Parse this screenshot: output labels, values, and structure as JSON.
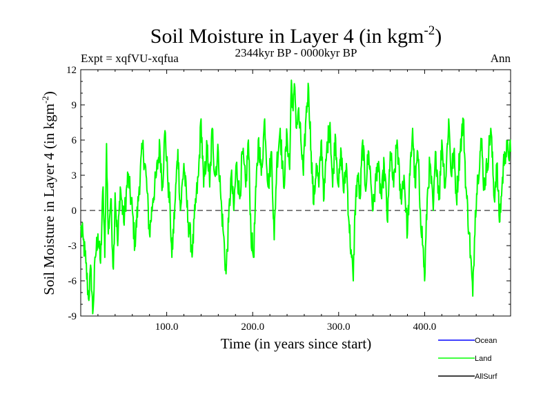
{
  "chart_data": {
    "type": "line",
    "title": "Soil Moisture in Layer 4 (in kgm",
    "title_sup": "-2",
    "title_close": ")",
    "subtitle": "2344kyr BP - 0000kyr BP",
    "expt_label": "Expt = xqfVU-xqfua",
    "season_label": "Ann",
    "xlabel": "Time (in years since start)",
    "ylabel": "Soil Moisture in Layer 4 (in kgm",
    "ylabel_sup": "-2",
    "ylabel_close": ")",
    "xlim": [
      0,
      500
    ],
    "ylim": [
      -9,
      12
    ],
    "xticks": [
      100,
      200,
      300,
      400
    ],
    "xtick_labels": [
      "100.0",
      "200.0",
      "300.0",
      "400.0"
    ],
    "yticks": [
      -9,
      -6,
      -3,
      0,
      3,
      6,
      9,
      12
    ],
    "ytick_labels": [
      "-9",
      "-6",
      "-3",
      "0",
      "3",
      "6",
      "9",
      "12"
    ],
    "zero_line": 0,
    "legend": [
      {
        "name": "Ocean",
        "color": "#0000ff"
      },
      {
        "name": "Land",
        "color": "#00ff00"
      },
      {
        "name": "AllSurf",
        "color": "#000000"
      }
    ],
    "series": [
      {
        "name": "Land",
        "color": "#00ff00",
        "keypoints": [
          [
            0,
            -1.5
          ],
          [
            3,
            -2.5
          ],
          [
            6,
            -4.5
          ],
          [
            9,
            -7.5
          ],
          [
            12,
            -5
          ],
          [
            14,
            -8.8
          ],
          [
            17,
            -4
          ],
          [
            20,
            -2
          ],
          [
            23,
            -4.5
          ],
          [
            26,
            2
          ],
          [
            28,
            -4
          ],
          [
            30,
            5.7
          ],
          [
            32,
            -2
          ],
          [
            35,
            1
          ],
          [
            38,
            -5
          ],
          [
            40,
            1.5
          ],
          [
            43,
            -3
          ],
          [
            46,
            2
          ],
          [
            50,
            -1
          ],
          [
            55,
            3
          ],
          [
            60,
            0
          ],
          [
            63,
            -3
          ],
          [
            68,
            2
          ],
          [
            72,
            5.5
          ],
          [
            76,
            3
          ],
          [
            80,
            -2
          ],
          [
            84,
            1
          ],
          [
            88,
            3
          ],
          [
            92,
            5.5
          ],
          [
            95,
            2
          ],
          [
            98,
            6.8
          ],
          [
            101,
            3
          ],
          [
            104,
            0
          ],
          [
            106,
            -4
          ],
          [
            110,
            1
          ],
          [
            113,
            5.2
          ],
          [
            116,
            0
          ],
          [
            120,
            4
          ],
          [
            125,
            -1
          ],
          [
            130,
            -3.5
          ],
          [
            133,
            0
          ],
          [
            137,
            3
          ],
          [
            140,
            7.8
          ],
          [
            143,
            2
          ],
          [
            147,
            5.5
          ],
          [
            150,
            2
          ],
          [
            153,
            7
          ],
          [
            156,
            3
          ],
          [
            160,
            5
          ],
          [
            163,
            1
          ],
          [
            166,
            -2
          ],
          [
            169,
            -5.4
          ],
          [
            172,
            -1
          ],
          [
            175,
            3
          ],
          [
            178,
            0
          ],
          [
            181,
            4
          ],
          [
            185,
            1
          ],
          [
            188,
            5
          ],
          [
            192,
            2
          ],
          [
            195,
            6
          ],
          [
            198,
            -2
          ],
          [
            201,
            -4
          ],
          [
            204,
            2
          ],
          [
            207,
            6.2
          ],
          [
            210,
            3
          ],
          [
            214,
            7.8
          ],
          [
            218,
            2
          ],
          [
            222,
            5
          ],
          [
            225,
            -2.5
          ],
          [
            228,
            4
          ],
          [
            232,
            7
          ],
          [
            236,
            2
          ],
          [
            240,
            6.5
          ],
          [
            243,
            3.5
          ],
          [
            245,
            11.1
          ],
          [
            247,
            8.5
          ],
          [
            249,
            10.5
          ],
          [
            251,
            7
          ],
          [
            253,
            8.5
          ],
          [
            256,
            6
          ],
          [
            259,
            3
          ],
          [
            262,
            8
          ],
          [
            265,
            10.5
          ],
          [
            268,
            5
          ],
          [
            271,
            0.5
          ],
          [
            274,
            4
          ],
          [
            277,
            2
          ],
          [
            280,
            6
          ],
          [
            283,
            1
          ],
          [
            286,
            5
          ],
          [
            290,
            7.5
          ],
          [
            293,
            2
          ],
          [
            296,
            6.5
          ],
          [
            300,
            2
          ],
          [
            303,
            5
          ],
          [
            306,
            1.5
          ],
          [
            309,
            4
          ],
          [
            312,
            -1
          ],
          [
            315,
            -4
          ],
          [
            317,
            -6
          ],
          [
            319,
            0
          ],
          [
            322,
            3
          ],
          [
            325,
            1
          ],
          [
            328,
            6
          ],
          [
            331,
            2
          ],
          [
            335,
            5
          ],
          [
            340,
            0
          ],
          [
            345,
            4
          ],
          [
            350,
            1
          ],
          [
            353,
            4
          ],
          [
            357,
            -1
          ],
          [
            360,
            5
          ],
          [
            364,
            2
          ],
          [
            368,
            6
          ],
          [
            372,
            1
          ],
          [
            376,
            3
          ],
          [
            380,
            -2
          ],
          [
            383,
            3
          ],
          [
            386,
            7
          ],
          [
            389,
            2
          ],
          [
            392,
            5
          ],
          [
            395,
            0
          ],
          [
            398,
            -3
          ],
          [
            400,
            -6
          ],
          [
            403,
            1
          ],
          [
            406,
            4
          ],
          [
            410,
            0
          ],
          [
            413,
            5
          ],
          [
            417,
            1
          ],
          [
            420,
            6
          ],
          [
            424,
            2
          ],
          [
            428,
            7.8
          ],
          [
            431,
            3
          ],
          [
            434,
            5
          ],
          [
            437,
            1
          ],
          [
            441,
            5
          ],
          [
            445,
            7.8
          ],
          [
            448,
            2
          ],
          [
            452,
            -2
          ],
          [
            456,
            -7.3
          ],
          [
            459,
            0
          ],
          [
            462,
            3
          ],
          [
            466,
            6
          ],
          [
            469,
            2
          ],
          [
            473,
            4
          ],
          [
            477,
            7
          ],
          [
            481,
            1
          ],
          [
            484,
            4
          ],
          [
            487,
            -1
          ],
          [
            490,
            2
          ],
          [
            493,
            5
          ],
          [
            497,
            5
          ],
          [
            500,
            5
          ]
        ]
      }
    ]
  }
}
